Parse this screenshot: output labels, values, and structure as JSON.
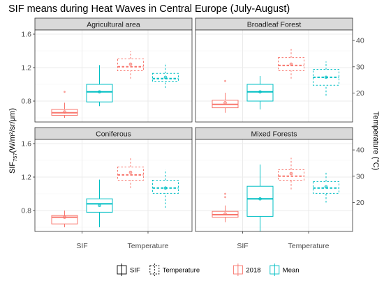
{
  "title": "SIF means during Heat Waves in Central Europe (July-August)",
  "ylabel_left": "SIF757(W/m²/sr/μm)",
  "ylabel_right": "Temperature (°C)",
  "colors": {
    "y2018": "#F8766D",
    "mean": "#00BFC4",
    "strip": "#d9d9d9",
    "panel_border": "#333333",
    "grid": "#ebebeb"
  },
  "chart_data": {
    "type": "boxplot",
    "title": "SIF means during Heat Waves in Central Europe (July-August)",
    "categories": [
      "SIF",
      "Temperature"
    ],
    "y_left": {
      "label": "SIF757(W/m²/sr/μm)",
      "lim": [
        0.55,
        1.65
      ],
      "ticks": [
        0.8,
        1.2,
        1.6
      ],
      "tick_labels": [
        "0.8",
        "1.2",
        "1.6"
      ]
    },
    "y_right": {
      "label": "Temperature (°C)",
      "lim": [
        9,
        44
      ],
      "ticks": [
        20,
        30,
        40
      ],
      "tick_labels": [
        "20",
        "30",
        "40"
      ]
    },
    "legend": {
      "linetype_items": [
        {
          "label": "SIF",
          "dash": false
        },
        {
          "label": "Temperature",
          "dash": true
        }
      ],
      "color_items": [
        {
          "label": "2018",
          "color": "#F8766D"
        },
        {
          "label": "Mean",
          "color": "#00BFC4"
        }
      ],
      "position": "bottom"
    },
    "panels": [
      {
        "name": "Agricultural area",
        "boxes": [
          {
            "category": "SIF",
            "group": "2018",
            "unit": "SIF",
            "whisker_low": 0.6,
            "q1": 0.63,
            "median": 0.66,
            "q3": 0.7,
            "whisker_high": 0.78,
            "mean": 0.67,
            "outliers": [
              0.91
            ]
          },
          {
            "category": "SIF",
            "group": "Mean",
            "unit": "SIF",
            "whisker_low": 0.74,
            "q1": 0.79,
            "median": 0.91,
            "q3": 1.0,
            "whisker_high": 1.23,
            "mean": 0.91,
            "outliers": []
          },
          {
            "category": "Temperature",
            "group": "2018",
            "unit": "Temperature",
            "whisker_low": 25.5,
            "q1": 28.5,
            "median": 30.0,
            "q3": 33.0,
            "whisker_high": 36.0,
            "mean": 31.0,
            "outliers": []
          },
          {
            "category": "Temperature",
            "group": "Mean",
            "unit": "Temperature",
            "whisker_low": 22.0,
            "q1": 24.5,
            "median": 25.5,
            "q3": 27.5,
            "whisker_high": 31.5,
            "mean": 26.0,
            "outliers": []
          }
        ]
      },
      {
        "name": "Broadleaf Forest",
        "boxes": [
          {
            "category": "SIF",
            "group": "2018",
            "unit": "SIF",
            "whisker_low": 0.66,
            "q1": 0.72,
            "median": 0.76,
            "q3": 0.81,
            "whisker_high": 0.9,
            "mean": 0.78,
            "outliers": [
              1.04
            ]
          },
          {
            "category": "SIF",
            "group": "Mean",
            "unit": "SIF",
            "whisker_low": 0.7,
            "q1": 0.8,
            "median": 0.91,
            "q3": 1.0,
            "whisker_high": 1.1,
            "mean": 0.91,
            "outliers": []
          },
          {
            "category": "Temperature",
            "group": "2018",
            "unit": "Temperature",
            "whisker_low": 25.5,
            "q1": 28.5,
            "median": 30.5,
            "q3": 33.5,
            "whisker_high": 37.0,
            "mean": 31.0,
            "outliers": []
          },
          {
            "category": "Temperature",
            "group": "Mean",
            "unit": "Temperature",
            "whisker_low": 19.0,
            "q1": 23.0,
            "median": 26.0,
            "q3": 29.0,
            "whisker_high": 32.0,
            "mean": 26.0,
            "outliers": []
          }
        ]
      },
      {
        "name": "Coniferous",
        "boxes": [
          {
            "category": "SIF",
            "group": "2018",
            "unit": "SIF",
            "whisker_low": 0.6,
            "q1": 0.64,
            "median": 0.72,
            "q3": 0.74,
            "whisker_high": 0.8,
            "mean": 0.72,
            "outliers": []
          },
          {
            "category": "SIF",
            "group": "Mean",
            "unit": "SIF",
            "whisker_low": 0.6,
            "q1": 0.78,
            "median": 0.88,
            "q3": 0.94,
            "whisker_high": 1.17,
            "mean": 0.86,
            "outliers": []
          },
          {
            "category": "Temperature",
            "group": "2018",
            "unit": "Temperature",
            "whisker_low": 25.5,
            "q1": 28.5,
            "median": 30.5,
            "q3": 33.5,
            "whisker_high": 37.0,
            "mean": 31.5,
            "outliers": []
          },
          {
            "category": "Temperature",
            "group": "Mean",
            "unit": "Temperature",
            "whisker_low": 18.0,
            "q1": 23.5,
            "median": 25.5,
            "q3": 28.5,
            "whisker_high": 32.5,
            "mean": 25.5,
            "outliers": []
          }
        ]
      },
      {
        "name": "Mixed Forests",
        "boxes": [
          {
            "category": "SIF",
            "group": "2018",
            "unit": "SIF",
            "whisker_low": 0.66,
            "q1": 0.72,
            "median": 0.75,
            "q3": 0.79,
            "whisker_high": 0.86,
            "mean": 0.76,
            "outliers": [
              0.96,
              1.0
            ]
          },
          {
            "category": "SIF",
            "group": "Mean",
            "unit": "SIF",
            "whisker_low": 0.55,
            "q1": 0.73,
            "median": 0.94,
            "q3": 1.09,
            "whisker_high": 1.35,
            "mean": 0.94,
            "outliers": []
          },
          {
            "category": "Temperature",
            "group": "2018",
            "unit": "Temperature",
            "whisker_low": 25.0,
            "q1": 28.5,
            "median": 30.0,
            "q3": 32.5,
            "whisker_high": 37.0,
            "mean": 31.0,
            "outliers": []
          },
          {
            "category": "Temperature",
            "group": "Mean",
            "unit": "Temperature",
            "whisker_low": 20.0,
            "q1": 23.5,
            "median": 25.5,
            "q3": 28.0,
            "whisker_high": 31.5,
            "mean": 26.0,
            "outliers": []
          }
        ]
      }
    ]
  }
}
